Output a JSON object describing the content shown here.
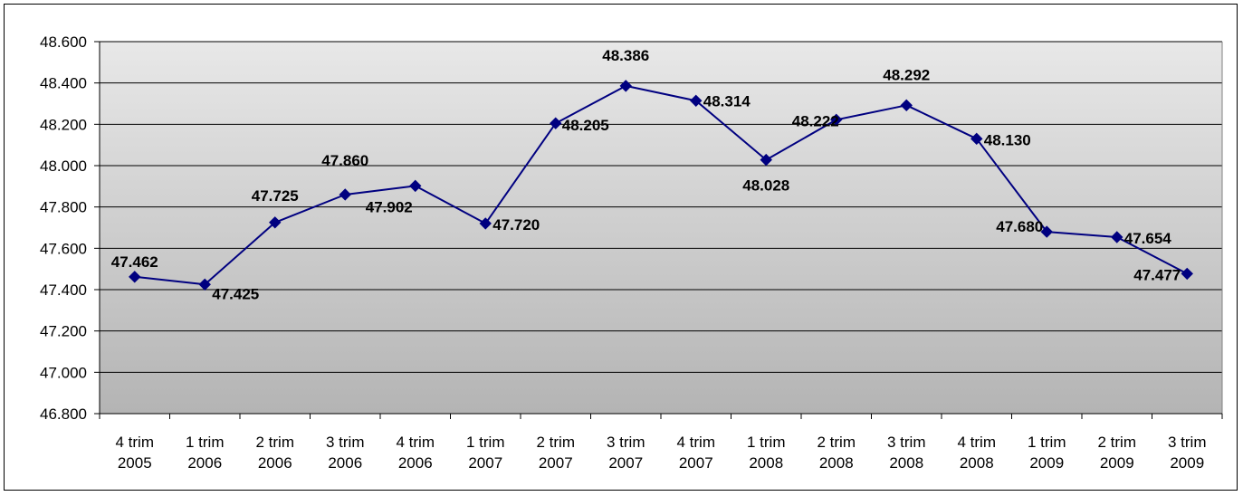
{
  "chart_data": {
    "type": "line",
    "categories": [
      [
        "4 trim",
        "2005"
      ],
      [
        "1 trim",
        "2006"
      ],
      [
        "2 trim",
        "2006"
      ],
      [
        "3 trim",
        "2006"
      ],
      [
        "4 trim",
        "2006"
      ],
      [
        "1 trim",
        "2007"
      ],
      [
        "2 trim",
        "2007"
      ],
      [
        "3 trim",
        "2007"
      ],
      [
        "4 trim",
        "2007"
      ],
      [
        "1 trim",
        "2008"
      ],
      [
        "2 trim",
        "2008"
      ],
      [
        "3 trim",
        "2008"
      ],
      [
        "4 trim",
        "2008"
      ],
      [
        "1 trim",
        "2009"
      ],
      [
        "2 trim",
        "2009"
      ],
      [
        "3 trim",
        "2009"
      ]
    ],
    "values": [
      47462,
      47425,
      47725,
      47860,
      47902,
      47720,
      48205,
      48386,
      48314,
      48028,
      48222,
      48292,
      48130,
      47680,
      47654,
      47477
    ],
    "data_labels": [
      "47.462",
      "47.425",
      "47.725",
      "47.860",
      "47.902",
      "47.720",
      "48.205",
      "48.386",
      "48.314",
      "48.028",
      "48.222",
      "48.292",
      "48.130",
      "47.680",
      "47.654",
      "47.477"
    ],
    "ylim": [
      46800,
      48600
    ],
    "y_ticks": [
      "46.800",
      "47.000",
      "47.200",
      "47.400",
      "47.600",
      "47.800",
      "48.000",
      "48.200",
      "48.400",
      "48.600"
    ],
    "grid": true,
    "legend": "none",
    "colors": {
      "line": "#000080",
      "marker": "#000080",
      "plot_bg_top": "#e8e8e8",
      "plot_bg_bottom": "#b4b4b4",
      "grid": "#000000"
    },
    "marker": "diamond-icon"
  }
}
